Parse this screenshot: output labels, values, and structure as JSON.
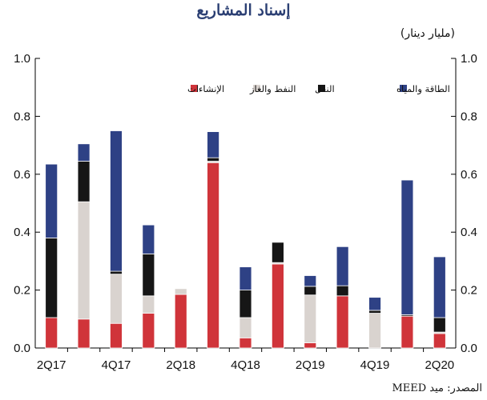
{
  "chart_data": {
    "type": "bar",
    "stacked": true,
    "title": "إسناد المشاريع",
    "unit_label": "(مليار دينار)",
    "source": "المصدر: ميد MEED",
    "ylim": [
      0,
      1.0
    ],
    "y_ticks": [
      "0.0",
      "0.2",
      "0.4",
      "0.6",
      "0.8",
      "1.0"
    ],
    "y_tick_values": [
      0,
      0.2,
      0.4,
      0.6,
      0.8,
      1.0
    ],
    "x_tick_labels": [
      {
        "index": 0,
        "label": "2Q17"
      },
      {
        "index": 2,
        "label": "4Q17"
      },
      {
        "index": 4,
        "label": "2Q18"
      },
      {
        "index": 6,
        "label": "4Q18"
      },
      {
        "index": 8,
        "label": "2Q19"
      },
      {
        "index": 10,
        "label": "4Q19"
      },
      {
        "index": 12,
        "label": "2Q20"
      }
    ],
    "categories": [
      "2Q17",
      "3Q17",
      "4Q17",
      "1Q18",
      "2Q18",
      "3Q18",
      "4Q18",
      "1Q19",
      "2Q19",
      "3Q19",
      "4Q19",
      "1Q20",
      "2Q20"
    ],
    "series": [
      {
        "name": "الإنشاءات",
        "color": "#d0343a",
        "values": [
          0.105,
          0.1,
          0.085,
          0.12,
          0.185,
          0.64,
          0.035,
          0.29,
          0.018,
          0.18,
          0.0,
          0.11,
          0.05
        ]
      },
      {
        "name": "النفط والغاز",
        "color": "#d9d3cf",
        "values": [
          0.0,
          0.405,
          0.17,
          0.06,
          0.02,
          0.005,
          0.07,
          0.005,
          0.165,
          0.0,
          0.12,
          0.0,
          0.005
        ]
      },
      {
        "name": "النقل",
        "color": "#161616",
        "values": [
          0.275,
          0.14,
          0.01,
          0.145,
          0.0,
          0.012,
          0.095,
          0.07,
          0.03,
          0.035,
          0.01,
          0.005,
          0.05
        ]
      },
      {
        "name": "الطاقة والمياه",
        "color": "#2e4185",
        "values": [
          0.255,
          0.06,
          0.485,
          0.1,
          0.0,
          0.09,
          0.08,
          0.0,
          0.037,
          0.135,
          0.045,
          0.465,
          0.21
        ]
      }
    ],
    "legend_order": [
      3,
      2,
      1,
      0
    ],
    "legend_position": "top",
    "grid": false
  }
}
